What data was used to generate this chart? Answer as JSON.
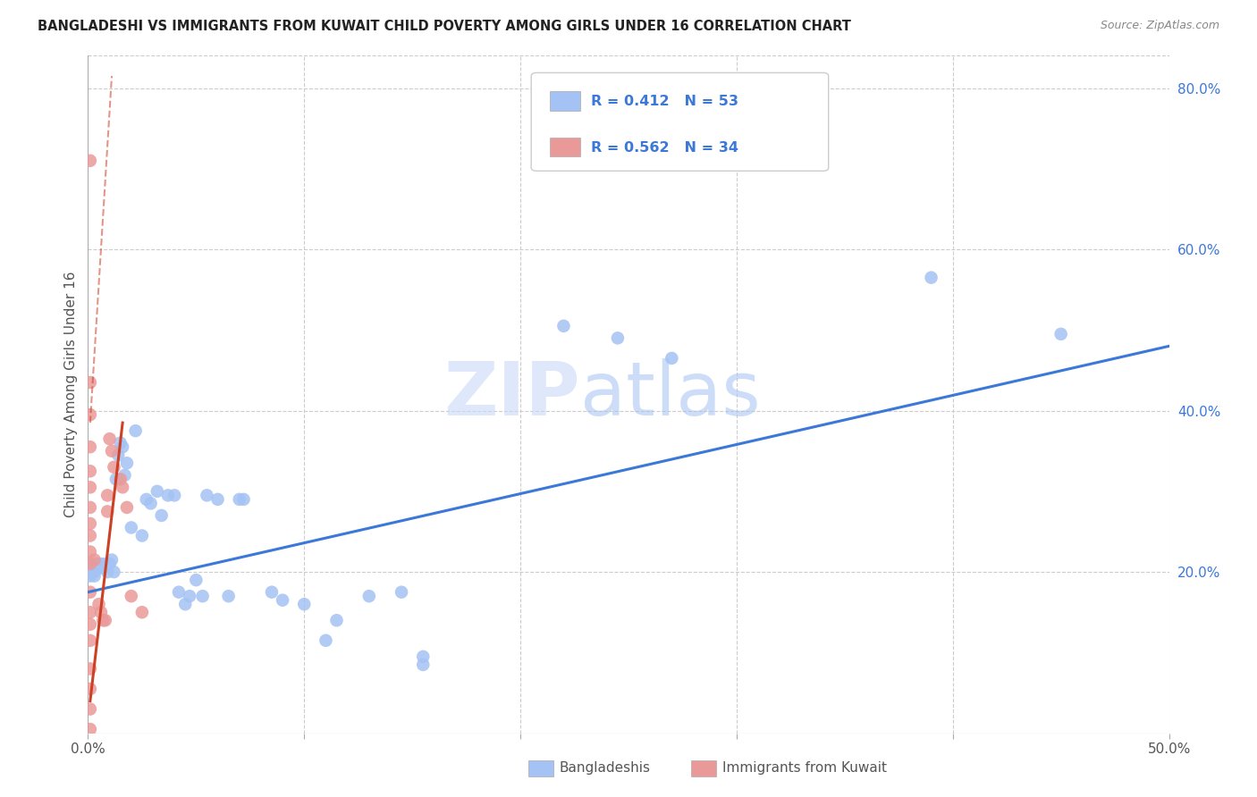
{
  "title": "BANGLADESHI VS IMMIGRANTS FROM KUWAIT CHILD POVERTY AMONG GIRLS UNDER 16 CORRELATION CHART",
  "source": "Source: ZipAtlas.com",
  "ylabel": "Child Poverty Among Girls Under 16",
  "x_min": 0.0,
  "x_max": 0.5,
  "y_min": 0.0,
  "y_max": 0.84,
  "watermark": "ZIPatlas",
  "legend1_label": "R = 0.412   N = 53",
  "legend2_label": "R = 0.562   N = 34",
  "legend_bottom_label1": "Bangladeshis",
  "legend_bottom_label2": "Immigrants from Kuwait",
  "blue_color": "#a4c2f4",
  "pink_color": "#ea9999",
  "blue_line_color": "#3c78d8",
  "pink_line_color": "#cc4125",
  "pink_dash_color": "#cc4125",
  "blue_scatter": [
    [
      0.001,
      0.205
    ],
    [
      0.001,
      0.195
    ],
    [
      0.002,
      0.2
    ],
    [
      0.003,
      0.2
    ],
    [
      0.003,
      0.195
    ],
    [
      0.004,
      0.21
    ],
    [
      0.005,
      0.205
    ],
    [
      0.006,
      0.21
    ],
    [
      0.007,
      0.205
    ],
    [
      0.008,
      0.21
    ],
    [
      0.009,
      0.2
    ],
    [
      0.01,
      0.21
    ],
    [
      0.011,
      0.215
    ],
    [
      0.012,
      0.2
    ],
    [
      0.013,
      0.315
    ],
    [
      0.014,
      0.345
    ],
    [
      0.015,
      0.36
    ],
    [
      0.016,
      0.355
    ],
    [
      0.017,
      0.32
    ],
    [
      0.018,
      0.335
    ],
    [
      0.02,
      0.255
    ],
    [
      0.022,
      0.375
    ],
    [
      0.025,
      0.245
    ],
    [
      0.027,
      0.29
    ],
    [
      0.029,
      0.285
    ],
    [
      0.032,
      0.3
    ],
    [
      0.034,
      0.27
    ],
    [
      0.037,
      0.295
    ],
    [
      0.04,
      0.295
    ],
    [
      0.042,
      0.175
    ],
    [
      0.045,
      0.16
    ],
    [
      0.047,
      0.17
    ],
    [
      0.05,
      0.19
    ],
    [
      0.053,
      0.17
    ],
    [
      0.055,
      0.295
    ],
    [
      0.06,
      0.29
    ],
    [
      0.065,
      0.17
    ],
    [
      0.07,
      0.29
    ],
    [
      0.072,
      0.29
    ],
    [
      0.085,
      0.175
    ],
    [
      0.09,
      0.165
    ],
    [
      0.1,
      0.16
    ],
    [
      0.11,
      0.115
    ],
    [
      0.115,
      0.14
    ],
    [
      0.13,
      0.17
    ],
    [
      0.145,
      0.175
    ],
    [
      0.155,
      0.095
    ],
    [
      0.155,
      0.085
    ],
    [
      0.22,
      0.505
    ],
    [
      0.245,
      0.49
    ],
    [
      0.27,
      0.465
    ],
    [
      0.39,
      0.565
    ],
    [
      0.45,
      0.495
    ]
  ],
  "pink_scatter": [
    [
      0.001,
      0.71
    ],
    [
      0.001,
      0.435
    ],
    [
      0.001,
      0.395
    ],
    [
      0.001,
      0.355
    ],
    [
      0.001,
      0.325
    ],
    [
      0.001,
      0.305
    ],
    [
      0.001,
      0.28
    ],
    [
      0.001,
      0.26
    ],
    [
      0.001,
      0.245
    ],
    [
      0.001,
      0.225
    ],
    [
      0.001,
      0.21
    ],
    [
      0.001,
      0.175
    ],
    [
      0.001,
      0.15
    ],
    [
      0.001,
      0.135
    ],
    [
      0.001,
      0.115
    ],
    [
      0.001,
      0.08
    ],
    [
      0.001,
      0.055
    ],
    [
      0.001,
      0.03
    ],
    [
      0.001,
      0.005
    ],
    [
      0.003,
      0.215
    ],
    [
      0.005,
      0.16
    ],
    [
      0.006,
      0.15
    ],
    [
      0.007,
      0.14
    ],
    [
      0.008,
      0.14
    ],
    [
      0.009,
      0.295
    ],
    [
      0.009,
      0.275
    ],
    [
      0.01,
      0.365
    ],
    [
      0.011,
      0.35
    ],
    [
      0.012,
      0.33
    ],
    [
      0.015,
      0.315
    ],
    [
      0.016,
      0.305
    ],
    [
      0.018,
      0.28
    ],
    [
      0.02,
      0.17
    ],
    [
      0.025,
      0.15
    ]
  ],
  "blue_line": [
    [
      0.0,
      0.175
    ],
    [
      0.5,
      0.48
    ]
  ],
  "pink_line_solid": [
    [
      0.001,
      0.04
    ],
    [
      0.016,
      0.385
    ]
  ],
  "pink_line_dash": [
    [
      0.001,
      0.385
    ],
    [
      0.011,
      0.815
    ]
  ]
}
